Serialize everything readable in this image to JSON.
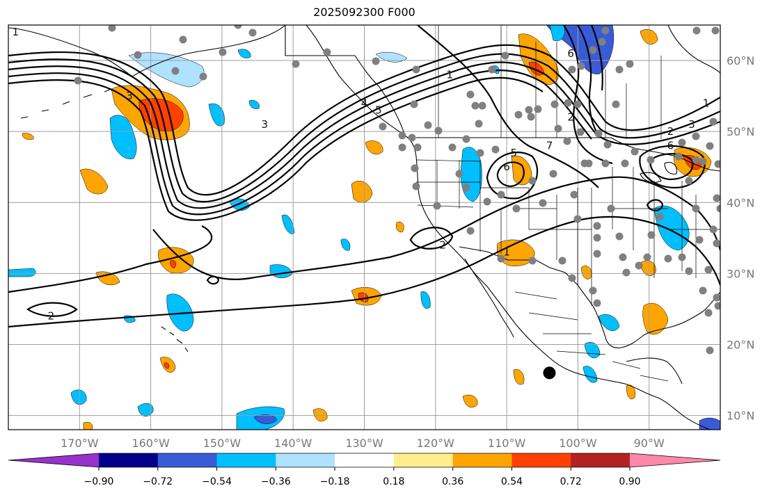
{
  "title": "2025092300 F000",
  "map": {
    "lon_labels": [
      {
        "lon": -170,
        "text": "170°W"
      },
      {
        "lon": -160,
        "text": "160°W"
      },
      {
        "lon": -150,
        "text": "150°W"
      },
      {
        "lon": -140,
        "text": "140°W"
      },
      {
        "lon": -130,
        "text": "130°W"
      },
      {
        "lon": -120,
        "text": "120°W"
      },
      {
        "lon": -110,
        "text": "110°W"
      },
      {
        "lon": -100,
        "text": "100°W"
      },
      {
        "lon": -90,
        "text": "90°W"
      }
    ],
    "lat_labels": [
      {
        "lat": 60,
        "text": "60°N"
      },
      {
        "lat": 50,
        "text": "50°N"
      },
      {
        "lat": 40,
        "text": "40°N"
      },
      {
        "lat": 30,
        "text": "30°N"
      },
      {
        "lat": 20,
        "text": "20°N"
      },
      {
        "lat": 10,
        "text": "10°N"
      }
    ],
    "extent": {
      "lon_min": -180,
      "lon_max": -80,
      "lat_min": 8,
      "lat_max": 65
    },
    "contour_labels": [
      {
        "text": "1",
        "lon": -179,
        "lat": 64
      },
      {
        "text": "3",
        "lon": -163,
        "lat": 55
      },
      {
        "text": "3",
        "lon": -144,
        "lat": 51
      },
      {
        "text": "4",
        "lon": -130,
        "lat": 54
      },
      {
        "text": "5",
        "lon": -128,
        "lat": 53
      },
      {
        "text": "1",
        "lon": -118,
        "lat": 58
      },
      {
        "text": "5",
        "lon": -109,
        "lat": 47
      },
      {
        "text": "6",
        "lon": -110,
        "lat": 45
      },
      {
        "text": "7",
        "lon": -104,
        "lat": 48
      },
      {
        "text": "2",
        "lon": -101,
        "lat": 52
      },
      {
        "text": "2",
        "lon": -87,
        "lat": 50
      },
      {
        "text": "3",
        "lon": -84,
        "lat": 51
      },
      {
        "text": "1",
        "lon": -82,
        "lat": 54
      },
      {
        "text": "6",
        "lon": -87,
        "lat": 48
      },
      {
        "text": "2",
        "lon": -119,
        "lat": 34
      },
      {
        "text": "1",
        "lon": -110,
        "lat": 33
      },
      {
        "text": "2",
        "lon": -174,
        "lat": 24
      },
      {
        "text": "6",
        "lon": -101,
        "lat": 61
      }
    ],
    "big_marker": {
      "lon": -104,
      "lat": 16
    }
  },
  "colorbar": {
    "colors": [
      "#9932cc",
      "#00008b",
      "#3a5bd6",
      "#00bfff",
      "#afe2ff",
      "#ffffff",
      "#ffee8c",
      "#ffa500",
      "#ff4000",
      "#b22222",
      "#ff88aa"
    ],
    "tick_labels": [
      "−0.90",
      "−0.72",
      "−0.54",
      "−0.36",
      "−0.18",
      "0.18",
      "0.36",
      "0.54",
      "0.72",
      "0.90"
    ]
  },
  "colors": {
    "pos_moderate": "#ffa500",
    "pos_strong": "#ff4000",
    "neg_light": "#afe2ff",
    "neg_moderate": "#00bfff",
    "neg_strong": "#3a5bd6",
    "station_dot": "#808080",
    "grid": "#9e9e9e"
  }
}
